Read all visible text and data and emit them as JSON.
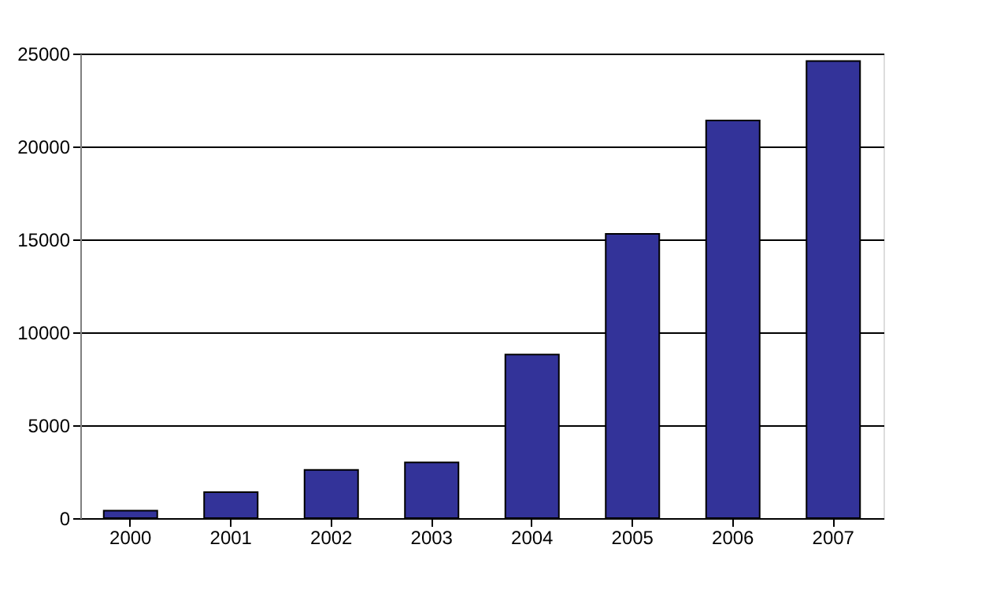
{
  "chart_data": {
    "type": "bar",
    "categories": [
      "2000",
      "2001",
      "2002",
      "2003",
      "2004",
      "2005",
      "2006",
      "2007"
    ],
    "values": [
      400,
      1400,
      2600,
      3000,
      8800,
      15300,
      21400,
      24600
    ],
    "color": "#333399",
    "ylim": [
      0,
      25000
    ],
    "yticks": [
      0,
      5000,
      10000,
      15000,
      20000,
      25000
    ],
    "grid": "y"
  }
}
